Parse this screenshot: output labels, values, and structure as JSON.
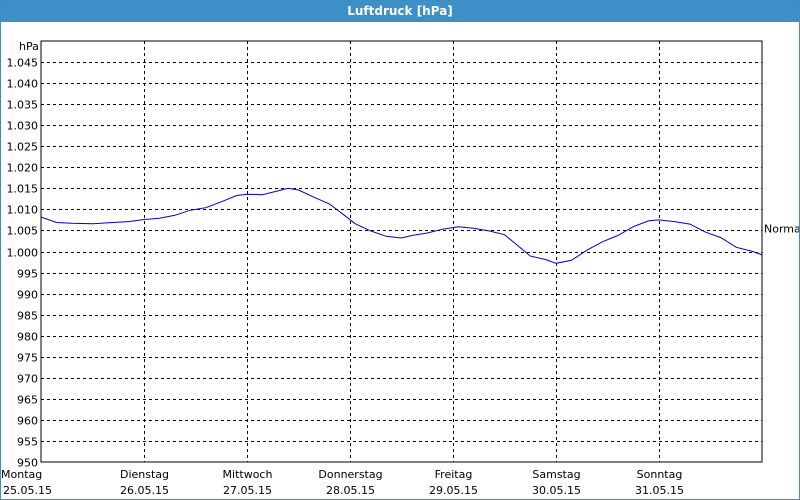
{
  "window": {
    "title": "Luftdruck [hPa]"
  },
  "chart_data": {
    "type": "line",
    "title": "Luftdruck [hPa]",
    "ylabel": "hPa",
    "xlabel": "",
    "ylim": [
      950,
      1050
    ],
    "yticks": [
      950,
      955,
      960,
      965,
      970,
      975,
      980,
      985,
      990,
      995,
      1000,
      1005,
      1010,
      1015,
      1020,
      1025,
      1030,
      1035,
      1040,
      1045
    ],
    "ytick_labels": [
      "950",
      "955",
      "960",
      "965",
      "970",
      "975",
      "980",
      "985",
      "990",
      "995",
      "1.000",
      "1.005",
      "1.010",
      "1.015",
      "1.020",
      "1.025",
      "1.030",
      "1.035",
      "1.040",
      "1.045"
    ],
    "xlim": [
      0,
      7
    ],
    "categories": [
      {
        "day": "Montag",
        "date": "25.05.15"
      },
      {
        "day": "Dienstag",
        "date": "26.05.15"
      },
      {
        "day": "Mittwoch",
        "date": "27.05.15"
      },
      {
        "day": "Donnerstag",
        "date": "28.05.15"
      },
      {
        "day": "Freitag",
        "date": "29.05.15"
      },
      {
        "day": "Samstag",
        "date": "30.05.15"
      },
      {
        "day": "Sonntag",
        "date": "31.05.15"
      }
    ],
    "grid": true,
    "reference": {
      "label": "Normal",
      "value": 1005.5
    },
    "series": [
      {
        "color": "#0000cc",
        "x": [
          0,
          0.15,
          0.3,
          0.5,
          0.7,
          0.85,
          1.0,
          1.15,
          1.3,
          1.45,
          1.6,
          1.75,
          1.9,
          2.0,
          2.15,
          2.3,
          2.4,
          2.5,
          2.65,
          2.8,
          2.95,
          3.05,
          3.2,
          3.35,
          3.5,
          3.6,
          3.75,
          3.9,
          4.05,
          4.2,
          4.35,
          4.5,
          4.6,
          4.75,
          4.9,
          5.0,
          5.15,
          5.3,
          5.45,
          5.6,
          5.75,
          5.9,
          6.0,
          6.15,
          6.3,
          6.45,
          6.6,
          6.75,
          6.9,
          7.0
        ],
        "y": [
          1008.2,
          1006.9,
          1006.7,
          1006.6,
          1006.9,
          1007.1,
          1007.6,
          1007.9,
          1008.6,
          1009.8,
          1010.4,
          1011.8,
          1013.3,
          1013.6,
          1013.5,
          1014.4,
          1015.0,
          1014.6,
          1012.9,
          1011.3,
          1008.5,
          1006.6,
          1004.9,
          1003.6,
          1003.2,
          1003.8,
          1004.4,
          1005.3,
          1005.9,
          1005.5,
          1004.9,
          1004.0,
          1002.0,
          998.9,
          998.1,
          997.2,
          997.9,
          1000.3,
          1002.3,
          1003.8,
          1005.9,
          1007.3,
          1007.5,
          1007.1,
          1006.5,
          1004.6,
          1003.3,
          1001.0,
          1000.1,
          999.2
        ]
      }
    ]
  }
}
